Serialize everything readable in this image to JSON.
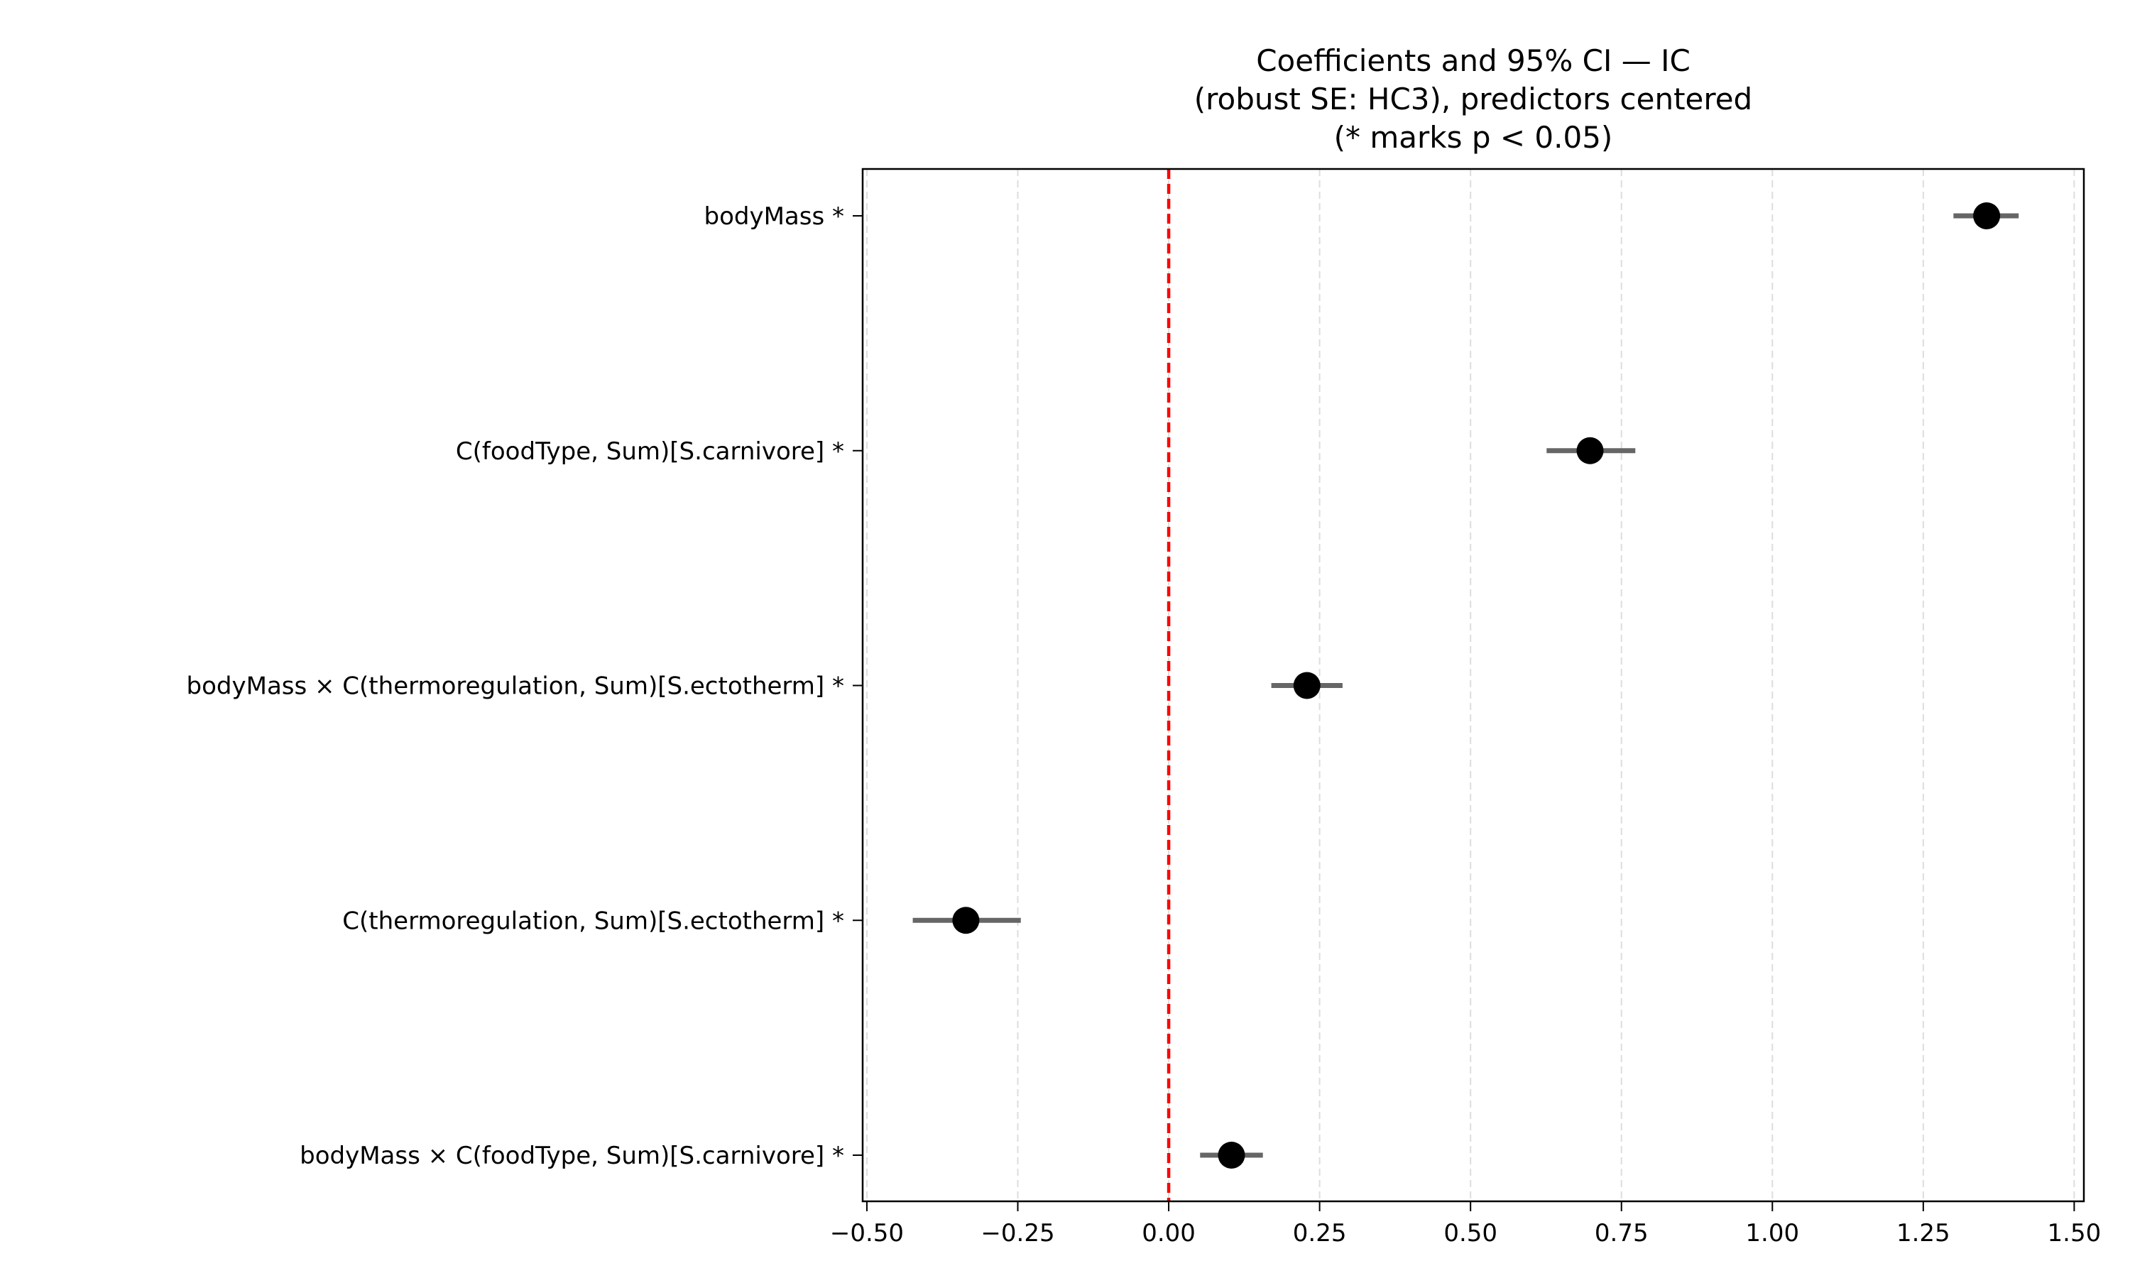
{
  "chart_data": {
    "type": "scatter",
    "subtype": "coefficient-plot-with-ci",
    "title": [
      "Coefficients and 95% CI — IC",
      "(robust SE: HC3), predictors centered",
      "(* marks p < 0.05)"
    ],
    "xlabel": "",
    "ylabel": "",
    "xlim": [
      -0.507,
      1.516
    ],
    "xticks": [
      -0.5,
      -0.25,
      0.0,
      0.25,
      0.5,
      0.75,
      1.0,
      1.25,
      1.5
    ],
    "xtick_labels": [
      "−0.50",
      "−0.25",
      "0.00",
      "0.25",
      "0.50",
      "0.75",
      "1.00",
      "1.25",
      "1.50"
    ],
    "grid": "x dashed",
    "reference_line": {
      "x": 0,
      "color": "#ff0000",
      "style": "dashed"
    },
    "terms": [
      {
        "label": "bodyMass *",
        "estimate": 1.355,
        "ci_low": 1.3,
        "ci_high": 1.408
      },
      {
        "label": "C(foodType, Sum)[S.carnivore] *",
        "estimate": 0.698,
        "ci_low": 0.626,
        "ci_high": 0.773
      },
      {
        "label": "bodyMass × C(thermoregulation, Sum)[S.ectotherm] *",
        "estimate": 0.229,
        "ci_low": 0.17,
        "ci_high": 0.288
      },
      {
        "label": "C(thermoregulation, Sum)[S.ectotherm] *",
        "estimate": -0.336,
        "ci_low": -0.424,
        "ci_high": -0.245
      },
      {
        "label": "bodyMass × C(foodType, Sum)[S.carnivore] *",
        "estimate": 0.104,
        "ci_low": 0.052,
        "ci_high": 0.156
      }
    ],
    "colors": {
      "point": "#000000",
      "ci": "#666666",
      "grid": "#dddddd",
      "ref": "#ff0000"
    }
  }
}
